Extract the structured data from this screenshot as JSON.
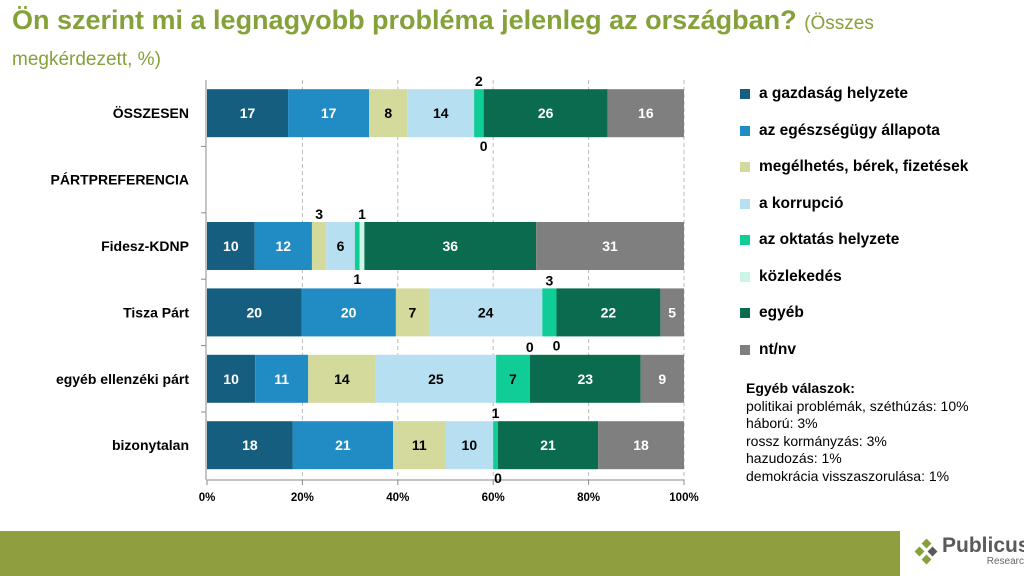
{
  "title": "Ön szerint mi a legnagyobb probléma jelenleg az országban?",
  "subtitle": "(Összes megkérdezett, %)",
  "chart_data": {
    "type": "bar",
    "stacked": true,
    "orientation": "horizontal",
    "categories": [
      "ÖSSZESEN",
      "PÁRTPREFERENCIA",
      "Fidesz-KDNP",
      "Tisza Párt",
      "egyéb ellenzéki párt",
      "bizonytalan"
    ],
    "series": [
      {
        "name": "a gazdaság helyzete",
        "color": "#165e80",
        "label_color": "#ffffff",
        "values": [
          17,
          null,
          10,
          20,
          10,
          18
        ]
      },
      {
        "name": "az egészségügy állapota",
        "color": "#218bc4",
        "label_color": "#ffffff",
        "values": [
          17,
          null,
          12,
          20,
          11,
          21
        ]
      },
      {
        "name": "megélhetés, bérek, fizetések",
        "color": "#d4d99c",
        "label_color": "#000000",
        "values": [
          8,
          null,
          3,
          7,
          14,
          11
        ]
      },
      {
        "name": "a korrupció",
        "color": "#b7dff2",
        "label_color": "#000000",
        "values": [
          14,
          null,
          6,
          24,
          25,
          10
        ]
      },
      {
        "name": "az oktatás helyzete",
        "color": "#10cc96",
        "label_color": "#000000",
        "values": [
          2,
          null,
          1,
          3,
          7,
          1
        ]
      },
      {
        "name": "közlekedés",
        "color": "#ccf5e6",
        "label_color": "#000000",
        "values": [
          0,
          null,
          1,
          0,
          0,
          0
        ]
      },
      {
        "name": "egyéb",
        "color": "#0a6b4e",
        "label_color": "#ffffff",
        "values": [
          26,
          null,
          36,
          22,
          23,
          21
        ]
      },
      {
        "name": "nt/nv",
        "color": "#7f7f7f",
        "label_color": "#ffffff",
        "values": [
          16,
          null,
          31,
          5,
          9,
          18
        ]
      }
    ],
    "xticks": [
      "0%",
      "20%",
      "40%",
      "60%",
      "80%",
      "100%"
    ],
    "xlim": [
      0,
      100
    ],
    "grid": "vertical dashed",
    "legend": "right"
  },
  "notes": {
    "heading": "Egyéb válaszok:",
    "items": [
      "politikai problémák, széthúzás: 10%",
      "háború: 3%",
      "rossz kormányzás: 3%",
      "hazudozás: 1%",
      "demokrácia visszaszorulása: 1%"
    ]
  },
  "logo": {
    "name": "Publicus",
    "sub": "Research"
  }
}
